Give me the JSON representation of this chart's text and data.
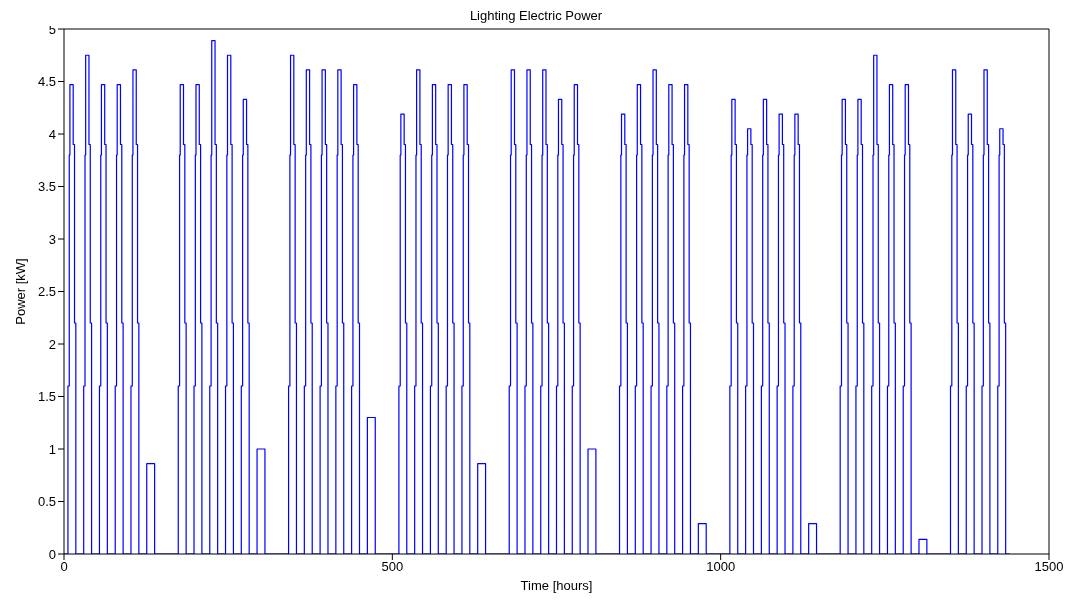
{
  "chart_data": {
    "type": "step",
    "title": "Lighting Electric Power",
    "xlabel": "Time [hours]",
    "ylabel": "Power [kW]",
    "color": "#0000ff",
    "x": [
      0,
      6,
      8,
      9,
      14,
      16,
      18,
      30,
      32,
      33,
      38,
      40,
      42,
      54,
      56,
      57,
      62,
      64,
      66,
      78,
      80,
      81,
      86,
      88,
      90,
      102,
      104,
      105,
      110,
      112,
      114,
      126,
      138,
      174,
      176,
      177,
      182,
      184,
      186,
      198,
      200,
      201,
      206,
      208,
      210,
      222,
      224,
      225,
      230,
      232,
      234,
      246,
      248,
      249,
      254,
      256,
      258,
      270,
      272,
      273,
      278,
      280,
      282,
      294,
      306,
      342,
      344,
      345,
      350,
      352,
      354,
      366,
      368,
      369,
      374,
      376,
      378,
      390,
      392,
      393,
      398,
      400,
      402,
      414,
      416,
      417,
      422,
      424,
      426,
      438,
      440,
      441,
      446,
      448,
      450,
      462,
      474,
      510,
      512,
      513,
      518,
      520,
      522,
      534,
      536,
      537,
      542,
      544,
      546,
      558,
      560,
      561,
      566,
      568,
      570,
      582,
      584,
      585,
      590,
      592,
      594,
      606,
      608,
      609,
      614,
      616,
      618,
      630,
      642,
      678,
      680,
      681,
      686,
      688,
      690,
      702,
      704,
      705,
      710,
      712,
      714,
      726,
      728,
      729,
      734,
      736,
      738,
      750,
      752,
      753,
      758,
      760,
      762,
      774,
      776,
      777,
      782,
      784,
      786,
      798,
      810,
      846,
      848,
      849,
      854,
      856,
      858,
      870,
      872,
      873,
      878,
      880,
      882,
      894,
      896,
      897,
      902,
      904,
      906,
      918,
      920,
      921,
      926,
      928,
      930,
      942,
      944,
      945,
      950,
      952,
      954,
      966,
      978,
      1014,
      1016,
      1017,
      1022,
      1024,
      1026,
      1038,
      1040,
      1041,
      1046,
      1048,
      1050,
      1062,
      1064,
      1065,
      1070,
      1072,
      1074,
      1086,
      1088,
      1089,
      1094,
      1096,
      1098,
      1110,
      1112,
      1113,
      1118,
      1120,
      1122,
      1134,
      1146,
      1182,
      1184,
      1185,
      1190,
      1192,
      1194,
      1206,
      1208,
      1209,
      1214,
      1216,
      1218,
      1230,
      1232,
      1233,
      1238,
      1240,
      1242,
      1254,
      1256,
      1257,
      1262,
      1264,
      1266,
      1278,
      1280,
      1281,
      1286,
      1288,
      1290,
      1302,
      1314,
      1350,
      1352,
      1353,
      1358,
      1360,
      1362,
      1374,
      1376,
      1377,
      1382,
      1384,
      1386,
      1398,
      1400,
      1401,
      1406,
      1408,
      1410,
      1422,
      1424,
      1425,
      1430,
      1432,
      1434,
      1440
    ],
    "values": [
      0,
      1.6,
      3.8,
      4.47,
      3.9,
      2.2,
      0,
      1.6,
      3.8,
      4.75,
      3.9,
      2.2,
      0,
      1.6,
      3.8,
      4.47,
      3.9,
      2.2,
      0,
      1.6,
      3.8,
      4.47,
      3.9,
      2.2,
      0,
      1.6,
      3.8,
      4.61,
      3.9,
      2.2,
      0,
      0.86,
      0,
      1.6,
      3.8,
      4.47,
      3.9,
      2.2,
      0,
      1.6,
      3.8,
      4.47,
      3.9,
      2.2,
      0,
      1.6,
      3.8,
      4.89,
      3.9,
      2.2,
      0,
      1.6,
      3.8,
      4.75,
      3.9,
      2.2,
      0,
      1.6,
      3.8,
      4.33,
      3.9,
      2.2,
      0,
      1.0,
      0,
      1.6,
      3.8,
      4.75,
      3.9,
      2.2,
      0,
      1.6,
      3.8,
      4.61,
      3.9,
      2.2,
      0,
      1.6,
      3.8,
      4.61,
      3.9,
      2.2,
      0,
      1.6,
      3.8,
      4.61,
      3.9,
      2.2,
      0,
      1.6,
      3.8,
      4.47,
      3.9,
      2.2,
      0,
      1.3,
      0,
      1.6,
      3.8,
      4.19,
      3.9,
      2.2,
      0,
      1.6,
      3.8,
      4.61,
      3.9,
      2.2,
      0,
      1.6,
      3.8,
      4.47,
      3.9,
      2.2,
      0,
      1.6,
      3.8,
      4.47,
      3.9,
      2.2,
      0,
      1.6,
      3.8,
      4.47,
      3.9,
      2.2,
      0,
      0.86,
      0,
      1.6,
      3.8,
      4.61,
      3.9,
      2.2,
      0,
      1.6,
      3.8,
      4.61,
      3.9,
      2.2,
      0,
      1.6,
      3.8,
      4.61,
      3.9,
      2.2,
      0,
      1.6,
      3.8,
      4.33,
      3.9,
      2.2,
      0,
      1.6,
      3.8,
      4.47,
      3.9,
      2.2,
      0,
      1.0,
      0,
      1.6,
      3.8,
      4.19,
      3.9,
      2.2,
      0,
      1.6,
      3.8,
      4.47,
      3.9,
      2.2,
      0,
      1.6,
      3.8,
      4.61,
      3.9,
      2.2,
      0,
      1.6,
      3.8,
      4.47,
      3.9,
      2.2,
      0,
      1.6,
      3.8,
      4.47,
      3.9,
      2.2,
      0,
      0.29,
      0,
      1.6,
      3.8,
      4.33,
      3.9,
      2.2,
      0,
      1.6,
      3.8,
      4.05,
      3.9,
      2.2,
      0,
      1.6,
      3.8,
      4.33,
      3.9,
      2.2,
      0,
      1.6,
      3.8,
      4.19,
      3.9,
      2.2,
      0,
      1.6,
      3.8,
      4.19,
      3.9,
      2.2,
      0,
      0.29,
      0,
      1.6,
      3.8,
      4.33,
      3.9,
      2.2,
      0,
      1.6,
      3.8,
      4.33,
      3.9,
      2.2,
      0,
      1.6,
      3.8,
      4.75,
      3.9,
      2.2,
      0,
      1.6,
      3.8,
      4.47,
      3.9,
      2.2,
      0,
      1.6,
      3.8,
      4.47,
      3.9,
      2.2,
      0,
      0.14,
      0,
      1.6,
      3.8,
      4.61,
      3.9,
      2.2,
      0,
      1.6,
      3.8,
      4.19,
      3.9,
      2.2,
      0,
      1.6,
      3.8,
      4.61,
      3.9,
      2.2,
      0,
      1.6,
      3.8,
      4.05,
      3.9,
      2.2,
      0,
      0
    ],
    "xlim": [
      0,
      1500
    ],
    "xticks": [
      0,
      500,
      1000,
      1500
    ],
    "ylim": [
      0,
      5
    ],
    "yticks": [
      0,
      0.5,
      1,
      1.5,
      2,
      2.5,
      3,
      3.5,
      4,
      4.5,
      5
    ],
    "grid": false,
    "legend": false
  }
}
